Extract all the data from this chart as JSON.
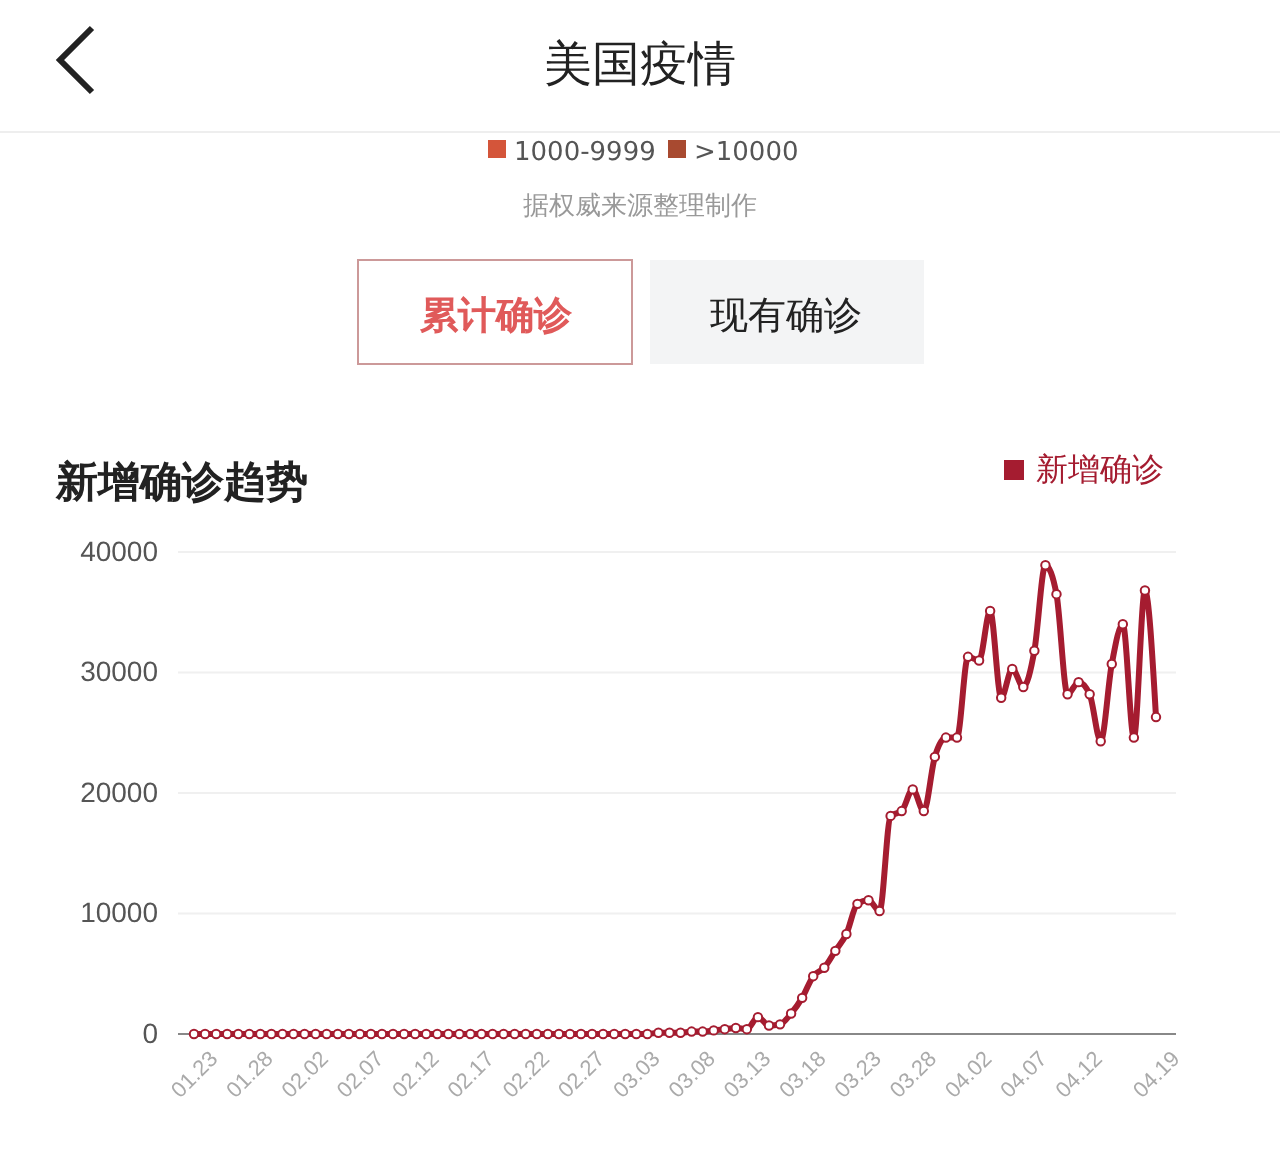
{
  "chart_data": {
    "type": "line",
    "title": "新增确诊趋势",
    "annotations": [
      "美国疫情",
      "1000-9999",
      ">10000",
      "据权威来源整理制作",
      "累计确诊",
      "现有确诊"
    ],
    "categories": [
      "01.23",
      null,
      null,
      null,
      null,
      "01.28",
      null,
      null,
      null,
      null,
      "02.02",
      null,
      null,
      null,
      null,
      "02.07",
      null,
      null,
      null,
      null,
      "02.12",
      null,
      null,
      null,
      null,
      "02.17",
      null,
      null,
      null,
      null,
      "02.22",
      null,
      null,
      null,
      null,
      "02.27",
      null,
      null,
      null,
      null,
      "03.03",
      null,
      null,
      null,
      null,
      "03.08",
      null,
      null,
      null,
      null,
      "03.13",
      null,
      null,
      null,
      null,
      "03.18",
      null,
      null,
      null,
      null,
      "03.23",
      null,
      null,
      null,
      null,
      "03.28",
      null,
      null,
      null,
      null,
      "04.02",
      null,
      null,
      null,
      null,
      "04.07",
      null,
      null,
      null,
      null,
      "04.12",
      null,
      null,
      null,
      null,
      null,
      null,
      "04.19"
    ],
    "series": [
      {
        "name": "新增确诊",
        "color": "#a51c30",
        "values": [
          0,
          0,
          0,
          0,
          0,
          0,
          0,
          0,
          0,
          0,
          0,
          0,
          0,
          0,
          0,
          0,
          0,
          0,
          0,
          0,
          0,
          0,
          0,
          0,
          0,
          0,
          0,
          0,
          0,
          0,
          0,
          0,
          0,
          0,
          0,
          0,
          0,
          0,
          0,
          0,
          0,
          0,
          100,
          100,
          100,
          200,
          200,
          300,
          400,
          500,
          400,
          1400,
          700,
          800,
          1700,
          3000,
          4800,
          5500,
          6900,
          8300,
          10800,
          11100,
          10200,
          18100,
          18500,
          20300,
          18500,
          23000,
          24600,
          24600,
          31300,
          31000,
          35100,
          27900,
          30300,
          28800,
          31800,
          38900,
          36500,
          28200,
          29200,
          28200,
          24300,
          30700,
          34000,
          24600,
          36800,
          26300
        ]
      }
    ],
    "ylim": [
      0,
      40000
    ],
    "yticks": [
      0,
      10000,
      20000,
      30000,
      40000
    ],
    "grid": "y",
    "legend": "top right",
    "marker": "circle",
    "line_style": "solid"
  }
}
